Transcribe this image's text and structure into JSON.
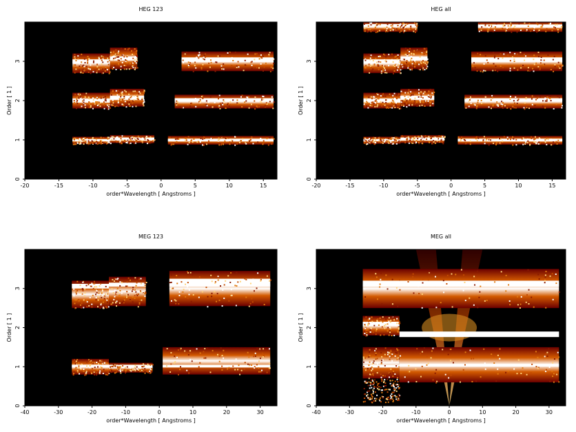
{
  "chart_data": [
    {
      "type": "heatmap",
      "title": "HEG 123",
      "xlabel": "order*Wavelength [ Angstroms ]",
      "ylabel": "Order [ 1 ]",
      "xlim": [
        -20,
        17
      ],
      "ylim": [
        0,
        4
      ],
      "xticks": [
        -20,
        -15,
        -10,
        -5,
        0,
        5,
        10,
        15
      ],
      "yticks": [
        0,
        1,
        2,
        3
      ],
      "background": "#000000",
      "bands": [
        {
          "order": 1,
          "x": [
            -13,
            -7.5
          ],
          "y": [
            0.9,
            1.08
          ],
          "core": [
            0.96,
            1.02
          ]
        },
        {
          "order": 1,
          "x": [
            -7.5,
            -1
          ],
          "y": [
            0.92,
            1.12
          ],
          "core": [
            0.98,
            1.06
          ]
        },
        {
          "order": 1,
          "x": [
            1,
            16.5
          ],
          "y": [
            0.88,
            1.1
          ],
          "core": [
            0.96,
            1.03
          ]
        },
        {
          "order": 2,
          "x": [
            -13,
            -7.5
          ],
          "y": [
            1.8,
            2.2
          ],
          "core": [
            1.95,
            2.05
          ]
        },
        {
          "order": 2,
          "x": [
            -7.5,
            -2.5
          ],
          "y": [
            1.85,
            2.3
          ],
          "core": [
            2.02,
            2.12
          ]
        },
        {
          "order": 2,
          "x": [
            2,
            16.5
          ],
          "y": [
            1.8,
            2.15
          ],
          "core": [
            1.98,
            2.06
          ]
        },
        {
          "order": 3,
          "x": [
            -13,
            -7.5
          ],
          "y": [
            2.7,
            3.2
          ],
          "core": [
            2.95,
            3.05
          ]
        },
        {
          "order": 3,
          "x": [
            -7.5,
            -3.5
          ],
          "y": [
            2.8,
            3.35
          ],
          "core": [
            3.02,
            3.12
          ]
        },
        {
          "order": 3,
          "x": [
            3,
            16.5
          ],
          "y": [
            2.75,
            3.25
          ],
          "core": [
            2.98,
            3.1
          ]
        }
      ]
    },
    {
      "type": "heatmap",
      "title": "HEG all",
      "xlabel": "order*Wavelength [ Angstroms ]",
      "ylabel": "Order [ 1 ]",
      "xlim": [
        -20,
        17
      ],
      "ylim": [
        0,
        4
      ],
      "xticks": [
        -20,
        -15,
        -10,
        -5,
        0,
        5,
        10,
        15
      ],
      "yticks": [
        0,
        1,
        2,
        3
      ],
      "background": "#000000",
      "bands": [
        {
          "order": 1,
          "x": [
            -13,
            -7.5
          ],
          "y": [
            0.9,
            1.08
          ],
          "core": [
            0.96,
            1.02
          ]
        },
        {
          "order": 1,
          "x": [
            -7.5,
            -1
          ],
          "y": [
            0.92,
            1.12
          ],
          "core": [
            0.98,
            1.06
          ]
        },
        {
          "order": 1,
          "x": [
            1,
            16.5
          ],
          "y": [
            0.88,
            1.1
          ],
          "core": [
            0.96,
            1.03
          ]
        },
        {
          "order": 2,
          "x": [
            -13,
            -7.5
          ],
          "y": [
            1.8,
            2.2
          ],
          "core": [
            1.95,
            2.05
          ]
        },
        {
          "order": 2,
          "x": [
            -7.5,
            -2.5
          ],
          "y": [
            1.85,
            2.3
          ],
          "core": [
            2.02,
            2.12
          ]
        },
        {
          "order": 2,
          "x": [
            2,
            16.5
          ],
          "y": [
            1.8,
            2.15
          ],
          "core": [
            1.98,
            2.06
          ]
        },
        {
          "order": 3,
          "x": [
            -13,
            -7.5
          ],
          "y": [
            2.7,
            3.2
          ],
          "core": [
            2.95,
            3.05
          ]
        },
        {
          "order": 3,
          "x": [
            -7.5,
            -3.5
          ],
          "y": [
            2.8,
            3.35
          ],
          "core": [
            3.02,
            3.12
          ]
        },
        {
          "order": 3,
          "x": [
            3,
            16.5
          ],
          "y": [
            2.75,
            3.25
          ],
          "core": [
            2.98,
            3.1
          ]
        },
        {
          "order": 4,
          "x": [
            -13,
            -5
          ],
          "y": [
            3.75,
            4.0
          ],
          "core": [
            3.88,
            3.95
          ]
        },
        {
          "order": 4,
          "x": [
            4,
            16.5
          ],
          "y": [
            3.75,
            4.0
          ],
          "core": [
            3.86,
            3.94
          ]
        }
      ]
    },
    {
      "type": "heatmap",
      "title": "MEG 123",
      "xlabel": "order*Wavelength [ Angstroms ]",
      "ylabel": "Order [ 1 ]",
      "xlim": [
        -40,
        35
      ],
      "ylim": [
        0,
        4
      ],
      "xticks": [
        -40,
        -30,
        -20,
        -10,
        0,
        10,
        20,
        30
      ],
      "yticks": [
        0,
        1,
        2,
        3
      ],
      "background": "#000000",
      "bands": [
        {
          "order": 1,
          "x": [
            -26,
            -15
          ],
          "y": [
            0.8,
            1.2
          ],
          "core": [
            0.98,
            1.05
          ]
        },
        {
          "order": 1,
          "x": [
            -15,
            -2
          ],
          "y": [
            0.85,
            1.1
          ],
          "core": [
            0.98,
            1.05
          ]
        },
        {
          "order": 1,
          "x": [
            1,
            33
          ],
          "y": [
            0.8,
            1.5
          ],
          "core": [
            0.98,
            1.05
          ]
        },
        {
          "order": 2,
          "x": [
            -26,
            -15
          ],
          "y": [
            2.5,
            3.2
          ],
          "core": [
            3.0,
            3.12
          ]
        },
        {
          "order": 2,
          "x": [
            -15,
            -4
          ],
          "y": [
            2.55,
            3.3
          ],
          "core": [
            3.05,
            3.15
          ]
        },
        {
          "order": 2,
          "x": [
            3,
            33
          ],
          "y": [
            2.55,
            3.45
          ],
          "core": [
            3.05,
            3.25
          ]
        }
      ]
    },
    {
      "type": "heatmap",
      "title": "MEG all",
      "xlabel": "order*Wavelength [ Angstroms ]",
      "ylabel": "Order [ 1 ]",
      "xlim": [
        -40,
        35
      ],
      "ylim": [
        0,
        4
      ],
      "xticks": [
        -40,
        -30,
        -20,
        -10,
        0,
        10,
        20,
        30
      ],
      "yticks": [
        0,
        1,
        2,
        3
      ],
      "background": "#000000",
      "bands": [
        {
          "order": 1,
          "x": [
            -26,
            -15
          ],
          "y": [
            0.7,
            1.5
          ],
          "core": [
            0.98,
            1.05
          ]
        },
        {
          "order": 1,
          "x": [
            -15,
            33
          ],
          "y": [
            0.6,
            1.5
          ],
          "core": [
            1.0,
            1.07
          ]
        },
        {
          "order": 2,
          "x": [
            -26,
            -15
          ],
          "y": [
            1.8,
            2.3
          ],
          "core": [
            2.05,
            2.15
          ]
        },
        {
          "order": 3,
          "x": [
            -26,
            33
          ],
          "y": [
            2.5,
            3.5
          ],
          "core": [
            3.05,
            3.2
          ]
        }
      ]
    }
  ]
}
